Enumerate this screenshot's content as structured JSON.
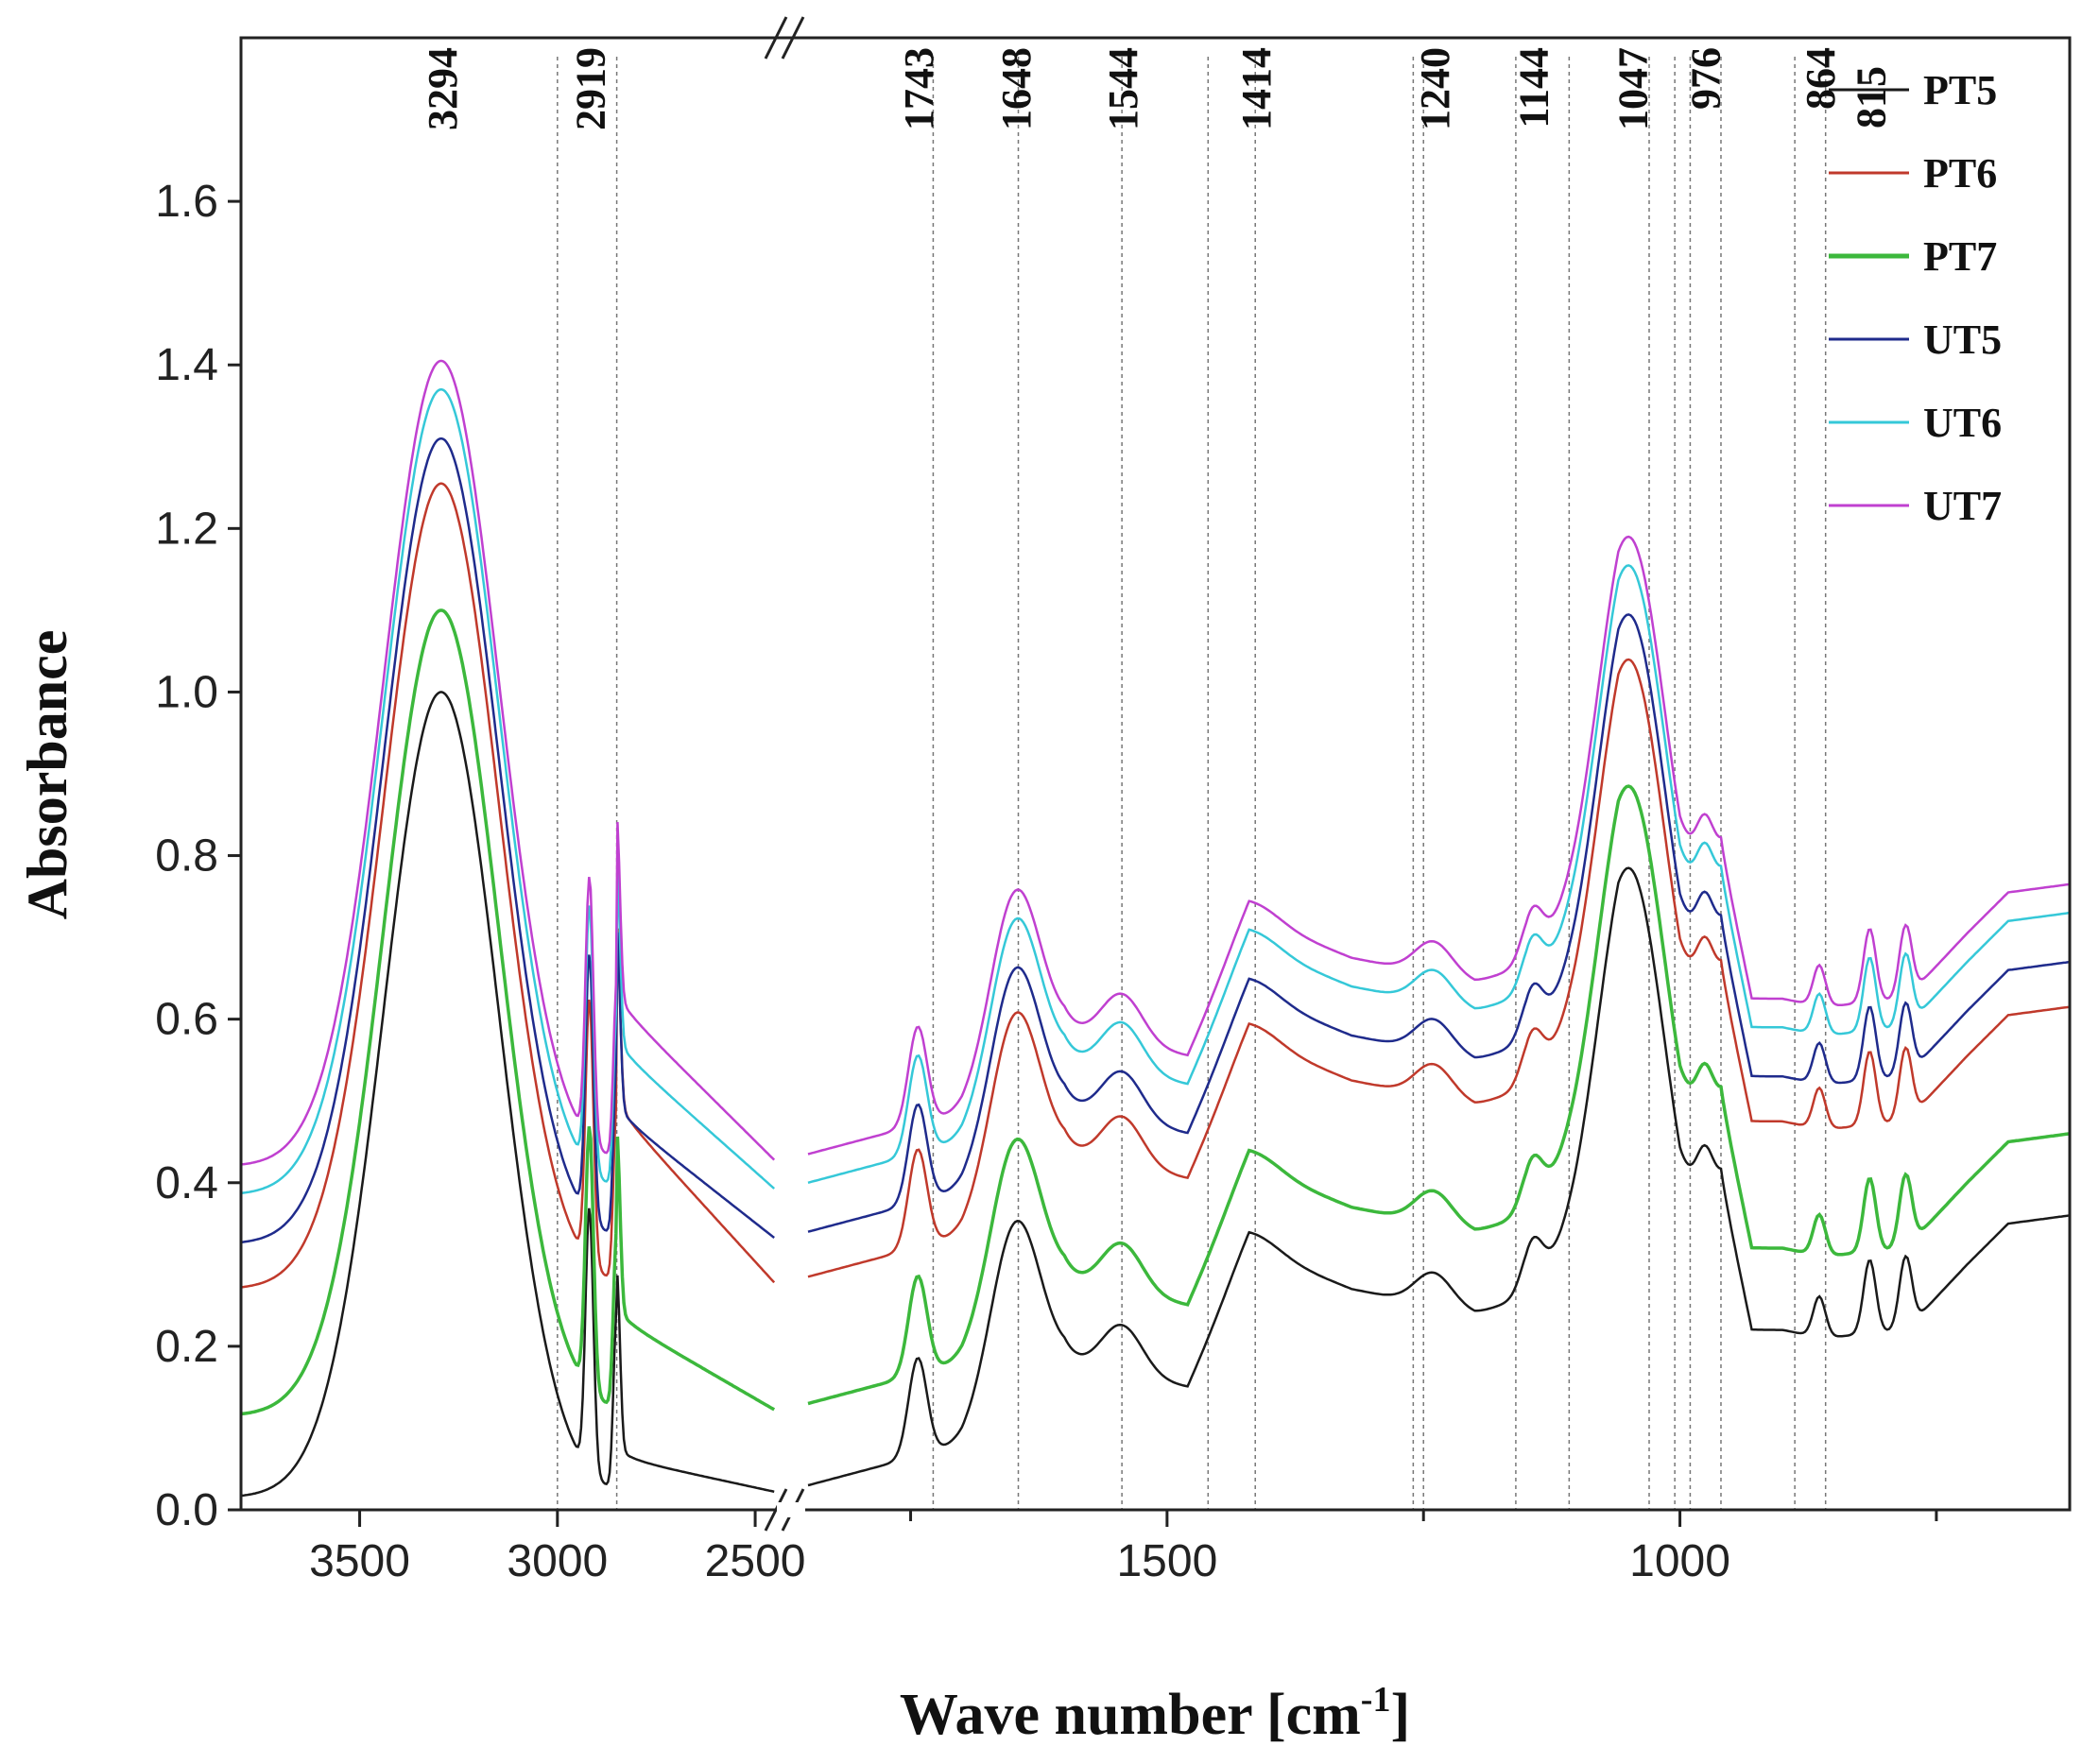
{
  "chart_data": {
    "type": "line",
    "title": "",
    "xlabel_main": "Wave number [cm",
    "xlabel_sup": "-1",
    "xlabel_close": "]",
    "ylabel": "Absorbance",
    "ylim": [
      0.0,
      1.8
    ],
    "yticks": [
      0.0,
      0.2,
      0.4,
      0.6,
      0.8,
      1.0,
      1.2,
      1.4,
      1.6
    ],
    "ytick_labels": [
      "0.0",
      "0.2",
      "0.4",
      "0.6",
      "0.8",
      "1.0",
      "1.2",
      "1.4",
      "1.6"
    ],
    "x_segments": [
      {
        "range": [
          3800,
          2450
        ],
        "ticks": [
          3500,
          3000,
          2500
        ],
        "tick_labels": [
          "3500",
          "3000",
          "2500"
        ]
      },
      {
        "range": [
          1850,
          620
        ],
        "ticks": [
          1500,
          1000
        ],
        "tick_labels": [
          "1500",
          "1000"
        ],
        "minor_ticks": [
          1750,
          1250,
          750
        ]
      }
    ],
    "axis_break": "//",
    "legend_position": "top-right",
    "peak_labels": [
      "3294",
      "2919",
      "1743",
      "1648",
      "1544",
      "1414",
      "1240",
      "1144",
      "1047",
      "976",
      "864",
      "815"
    ],
    "peak_positions": [
      3294,
      2919,
      1743,
      1648,
      1544,
      1414,
      1240,
      1144,
      1047,
      976,
      864,
      815
    ],
    "reference_lines": [
      3000,
      2850,
      1728,
      1645,
      1544,
      1460,
      1414,
      1260,
      1250,
      1160,
      1108,
      1030,
      1005,
      990,
      960,
      888,
      858
    ],
    "series": [
      {
        "name": "PT5",
        "color": "#1a1a1a",
        "offset": 0.0,
        "scale": 1.0
      },
      {
        "name": "PT6",
        "color": "#c0392b",
        "offset": 0.255,
        "scale": 1.0
      },
      {
        "name": "PT7",
        "color": "#3cb83c",
        "offset": 0.1,
        "scale": 1.0
      },
      {
        "name": "UT5",
        "color": "#1f2b8c",
        "offset": 0.31,
        "scale": 1.0
      },
      {
        "name": "UT6",
        "color": "#35c8d8",
        "offset": 0.37,
        "scale": 1.0
      },
      {
        "name": "UT7",
        "color": "#c040d0",
        "offset": 0.405,
        "scale": 1.0
      }
    ],
    "base_spectrum": {
      "baseline_left": 0.015,
      "baseline_right": [
        [
          1850,
          0.03
        ],
        [
          1760,
          0.06
        ],
        [
          1700,
          0.08
        ],
        [
          1600,
          0.18
        ],
        [
          1480,
          0.15
        ],
        [
          1420,
          0.32
        ],
        [
          1320,
          0.27
        ],
        [
          1200,
          0.24
        ],
        [
          1150,
          0.26
        ],
        [
          1100,
          0.32
        ],
        [
          1060,
          0.38
        ],
        [
          1000,
          0.3
        ],
        [
          960,
          0.4
        ],
        [
          930,
          0.22
        ],
        [
          900,
          0.22
        ],
        [
          860,
          0.21
        ],
        [
          780,
          0.22
        ],
        [
          720,
          0.3
        ],
        [
          680,
          0.35
        ],
        [
          620,
          0.36
        ]
      ],
      "peaks": [
        {
          "center": 3294,
          "height": 0.985,
          "width": 145
        },
        {
          "center": 2919,
          "height": 0.32,
          "width": 10
        },
        {
          "center": 2850,
          "height": 0.22,
          "width": 8
        },
        {
          "center": 1743,
          "height": 0.12,
          "width": 9
        },
        {
          "center": 1648,
          "height": 0.22,
          "width": 24
        },
        {
          "center": 1544,
          "height": 0.06,
          "width": 20
        },
        {
          "center": 1414,
          "height": 0.02,
          "width": 25
        },
        {
          "center": 1240,
          "height": 0.04,
          "width": 18
        },
        {
          "center": 1144,
          "height": 0.06,
          "width": 10
        },
        {
          "center": 1047,
          "height": 0.42,
          "width": 32
        },
        {
          "center": 976,
          "height": 0.05,
          "width": 8
        },
        {
          "center": 864,
          "height": 0.05,
          "width": 6
        },
        {
          "center": 815,
          "height": 0.09,
          "width": 6
        },
        {
          "center": 780,
          "height": 0.09,
          "width": 6
        }
      ]
    }
  }
}
